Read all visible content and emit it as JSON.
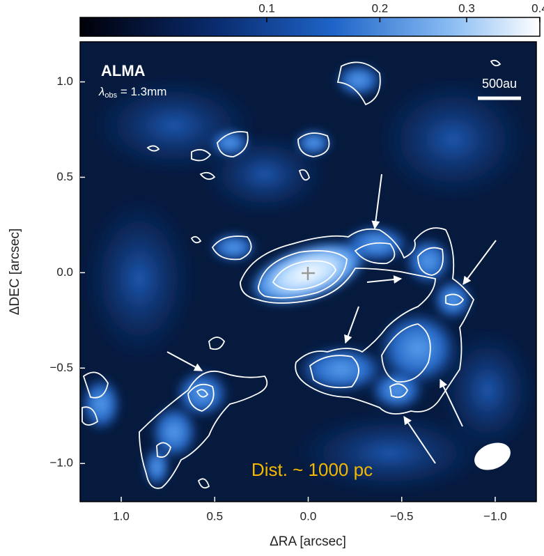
{
  "chart_data": {
    "type": "image",
    "x_label": "ΔRA [arcsec]",
    "y_label": "ΔDEC [arcsec]",
    "xlim": [
      1.22,
      -1.22
    ],
    "ylim": [
      -1.2,
      1.21
    ],
    "xticks": [
      {
        "value": 1.0,
        "label": "1.0"
      },
      0.5,
      {
        "value": 0.0,
        "label": "0.0"
      },
      {
        "value": -0.5,
        "label": "−0.5"
      },
      {
        "value": -1.0,
        "label": "−1.0"
      }
    ],
    "yticks": [
      {
        "value": 1.0,
        "label": "1.0"
      },
      0.5,
      {
        "value": 0.0,
        "label": "0.0"
      },
      {
        "value": -0.5,
        "label": "−0.5"
      },
      {
        "value": -1.0,
        "label": "−1.0"
      }
    ],
    "colorbar": {
      "clim": [
        0.01,
        0.4
      ],
      "scale": "sqrt",
      "ticks": [
        0.1,
        0.2,
        0.3,
        0.4
      ]
    },
    "annotations": {
      "telescope": "ALMA",
      "wavelength": {
        "symbol": "λ",
        "subscript": "obs",
        "text": " = 1.3mm"
      },
      "scale_bar": "500au",
      "distance": "Dist. ~ 1000 pc"
    }
  }
}
